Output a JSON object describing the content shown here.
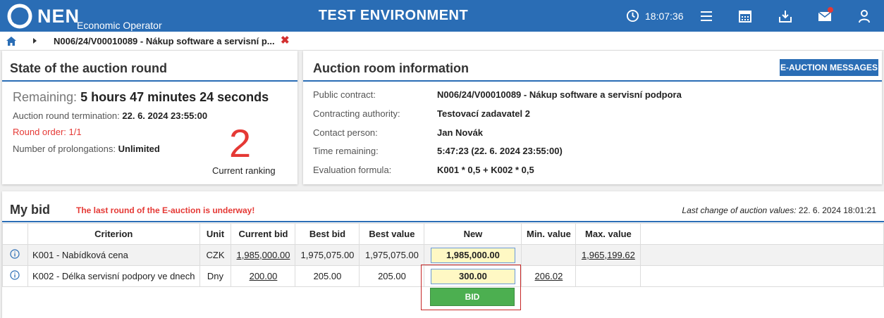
{
  "header": {
    "brand": "NEN",
    "brand_subtitle": "Economic Operator",
    "environment": "TEST ENVIRONMENT",
    "time": "18:07:36",
    "icons": [
      "clock-icon",
      "menu-icon",
      "calendar-icon",
      "inbox-icon",
      "mail-icon",
      "user-icon"
    ],
    "colors": {
      "primary": "#2a6db5",
      "notification": "#e53935"
    }
  },
  "breadcrumb": {
    "current": "N006/24/V00010089 - Nákup software a servisní p..."
  },
  "state_panel": {
    "title": "State of the auction round",
    "remaining_label": "Remaining:",
    "remaining_value": "5 hours 47 minutes 24 seconds",
    "termination_label": "Auction round termination:",
    "termination_value": "22. 6. 2024 23:55:00",
    "round_order": "Round order: 1/1",
    "prolongations_label": "Number of prolongations:",
    "prolongations_value": "Unlimited",
    "ranking_value": "2",
    "ranking_label": "Current ranking"
  },
  "room_panel": {
    "title": "Auction room information",
    "messages_button": "E-AUCTION MESSAGES",
    "rows": [
      {
        "label": "Public contract:",
        "value": "N006/24/V00010089 - Nákup software a servisní podpora"
      },
      {
        "label": "Contracting authority:",
        "value": "Testovací zadavatel 2"
      },
      {
        "label": "Contact person:",
        "value": "Jan Novák"
      },
      {
        "label": "Time remaining:",
        "value": "5:47:23 (22. 6. 2024 23:55:00)"
      },
      {
        "label": "Evaluation formula:",
        "value": "K001 * 0,5 + K002 * 0,5"
      }
    ]
  },
  "bid_panel": {
    "title": "My bid",
    "warning": "The last round of the E-auction is underway!",
    "last_change_label": "Last change of auction values:",
    "last_change_value": "22. 6. 2024 18:01:21",
    "columns": [
      "Criterion",
      "Unit",
      "Current bid",
      "Best bid",
      "Best value",
      "New",
      "Min. value",
      "Max. value"
    ],
    "rows": [
      {
        "criterion": "K001 - Nabídková cena",
        "unit": "CZK",
        "current_bid": "1,985,000.00",
        "best_bid": "1,975,075.00",
        "best_value": "1,975,075.00",
        "new": "1,985,000.00",
        "min_value": "",
        "max_value": "1,965,199.62"
      },
      {
        "criterion": "K002 - Délka servisní podpory ve dnech",
        "unit": "Dny",
        "current_bid": "200.00",
        "best_bid": "205.00",
        "best_value": "205.00",
        "new": "300.00",
        "min_value": "206.02",
        "max_value": ""
      }
    ],
    "bid_button": "BID"
  }
}
